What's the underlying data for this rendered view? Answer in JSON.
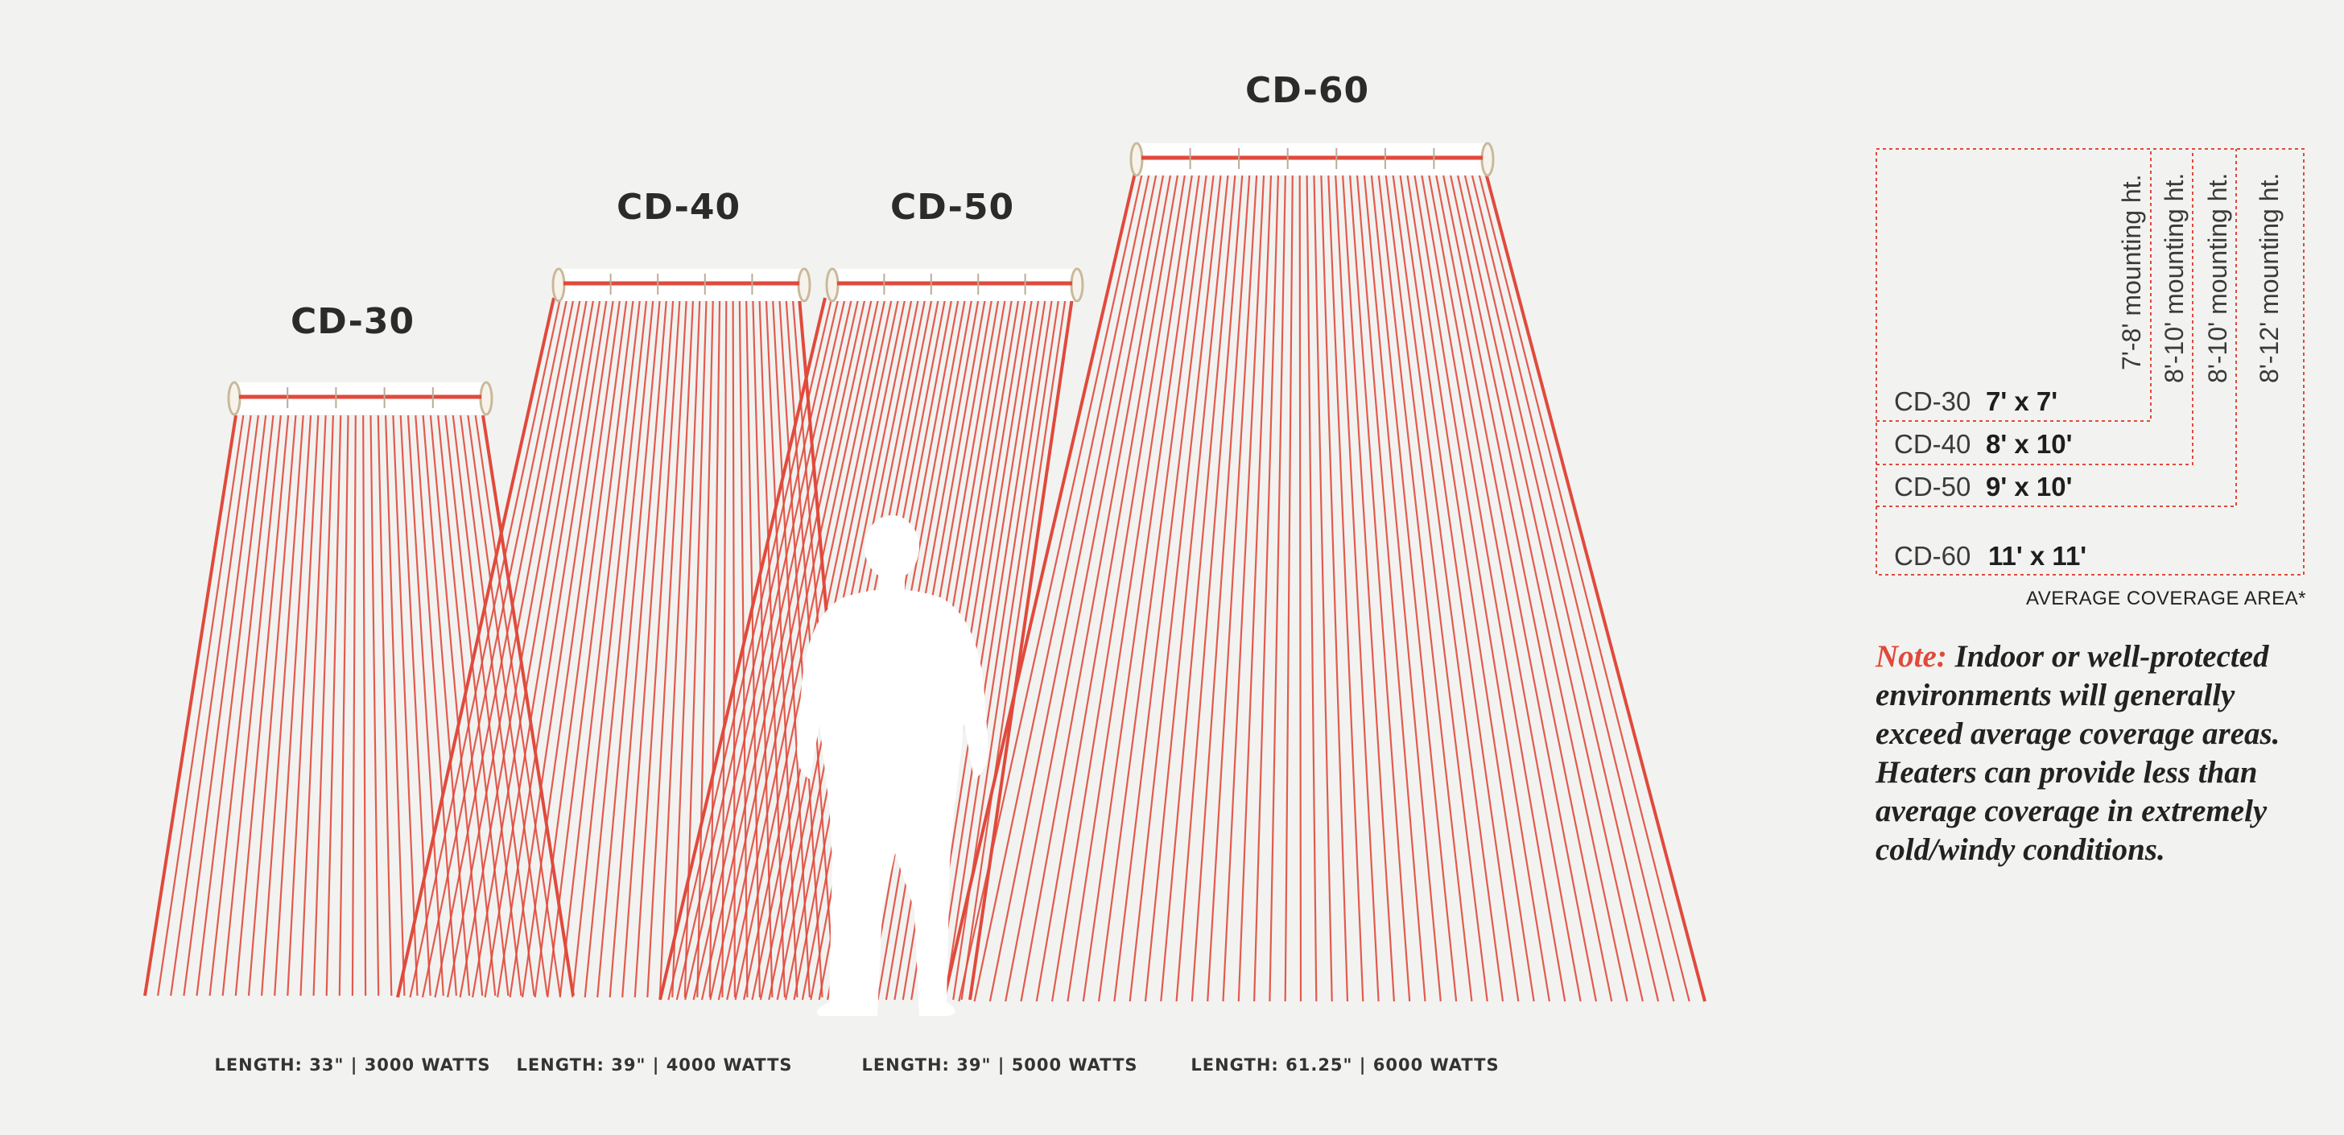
{
  "colors": {
    "beam": "#e04a3c",
    "heater_body": "#ffffff",
    "heater_cap": "#c9b99c",
    "dotted_frame": "#e04a3c",
    "text_dark": "#222222"
  },
  "heaters": [
    {
      "model": "CD-30",
      "length_label": "LENGTH: 33\" | 3000 WATTS"
    },
    {
      "model": "CD-40",
      "length_label": "LENGTH: 39\" | 4000 WATTS"
    },
    {
      "model": "CD-50",
      "length_label": "LENGTH: 39\" | 5000 WATTS"
    },
    {
      "model": "CD-60",
      "length_label": "LENGTH: 61.25\" | 6000 WATTS"
    }
  ],
  "coverage": {
    "rows": [
      {
        "model": "CD-30",
        "area": "7' x 7'",
        "mounting": "7'-8' mounting ht."
      },
      {
        "model": "CD-40",
        "area": "8' x 10'",
        "mounting": "8'-10' mounting ht."
      },
      {
        "model": "CD-50",
        "area": "9' x 10'",
        "mounting": "8'-10' mounting ht."
      },
      {
        "model": "CD-60",
        "area": "11' x 11'",
        "mounting": "8'-12' mounting ht."
      }
    ],
    "caption": "AVERAGE COVERAGE AREA*"
  },
  "note": {
    "label": "Note:",
    "text": "Indoor or well-protected environments will generally exceed average coverage areas. Heaters can provide less than average coverage in extremely cold/windy conditions."
  },
  "icons": {
    "person": "person-silhouette-icon"
  }
}
